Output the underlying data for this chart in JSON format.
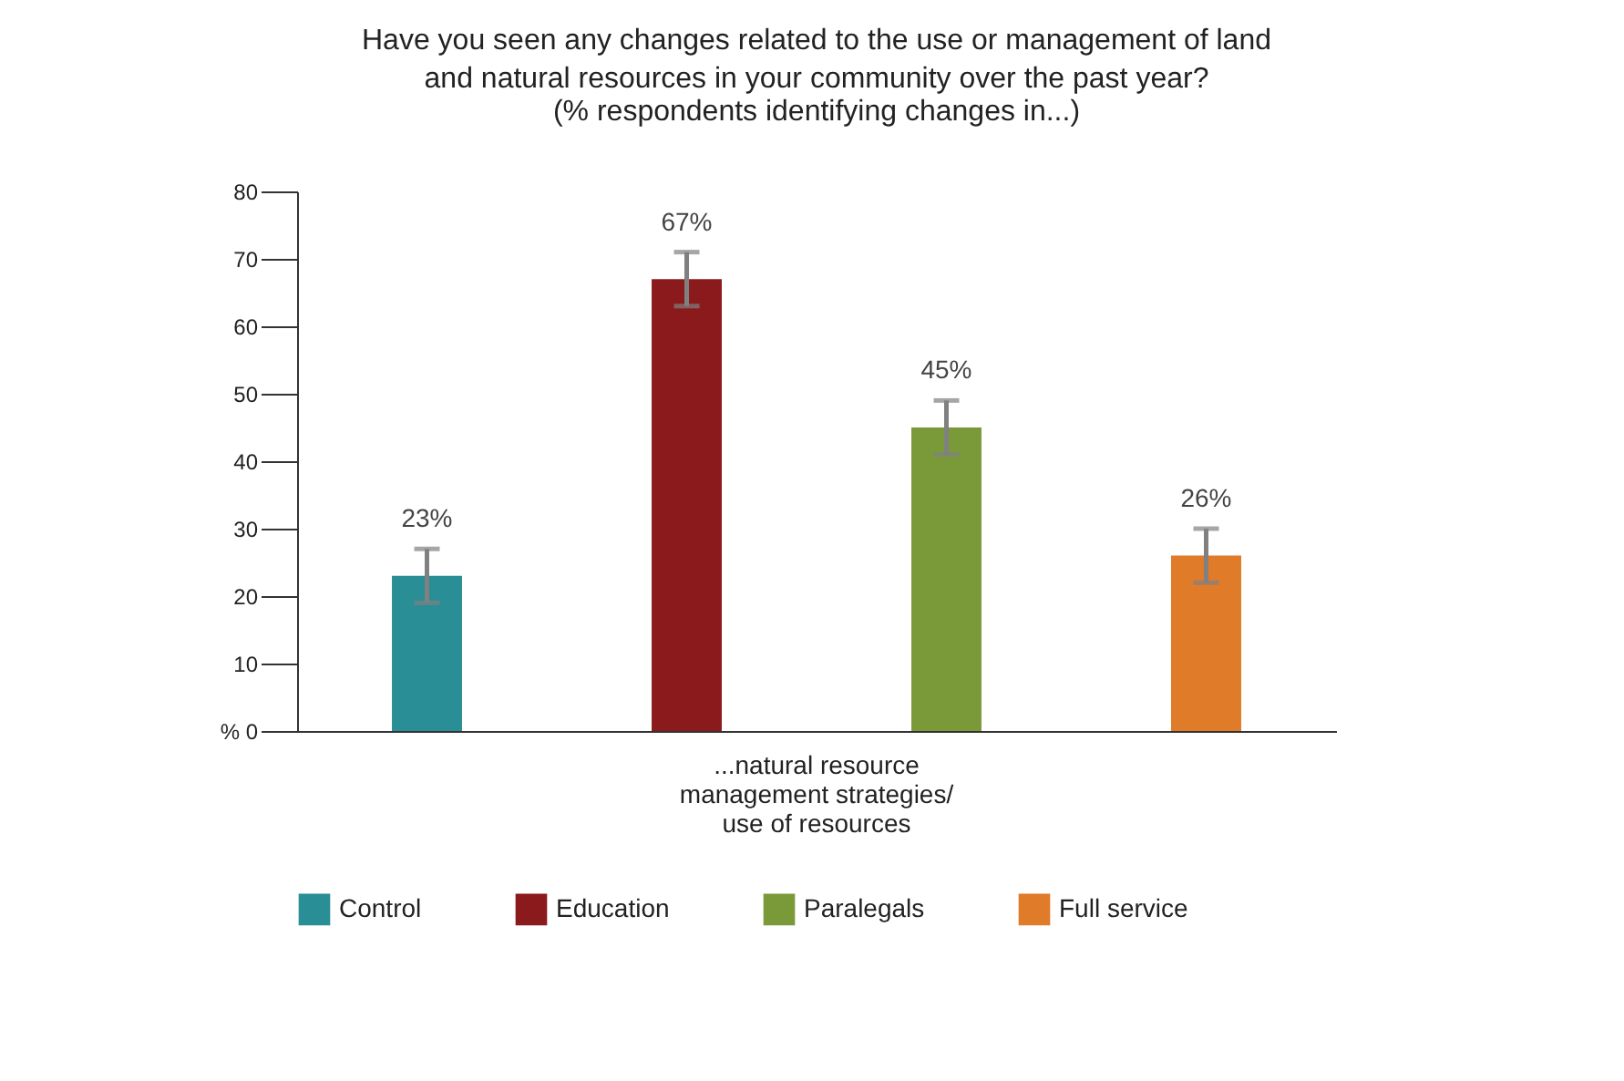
{
  "chart_data": {
    "type": "bar",
    "title": "Have you seen any changes related to the use or management of land and natural resources in your community over the past year?",
    "subtitle": "(% respondents identifying changes in...)",
    "categories": [
      "...natural resource management strategies/ use of resources"
    ],
    "series": [
      {
        "name": "Control",
        "color": "#2a8e96",
        "values": [
          23
        ],
        "errors": [
          4
        ],
        "value_labels": [
          "23%"
        ]
      },
      {
        "name": "Education",
        "color": "#8b1a1d",
        "values": [
          67
        ],
        "errors": [
          4
        ],
        "value_labels": [
          "67%"
        ]
      },
      {
        "name": "Paralegals",
        "color": "#7a9a3a",
        "values": [
          45
        ],
        "errors": [
          4
        ],
        "value_labels": [
          "45%"
        ]
      },
      {
        "name": "Full service",
        "color": "#e07b2a",
        "values": [
          26
        ],
        "errors": [
          4
        ],
        "value_labels": [
          "26%"
        ]
      }
    ],
    "ylim": [
      0,
      80
    ],
    "yticks": [
      {
        "value": 0,
        "label": "% 0"
      },
      10,
      20,
      30,
      40,
      50,
      60,
      70,
      80
    ],
    "grid": false,
    "legend": "bottom"
  }
}
